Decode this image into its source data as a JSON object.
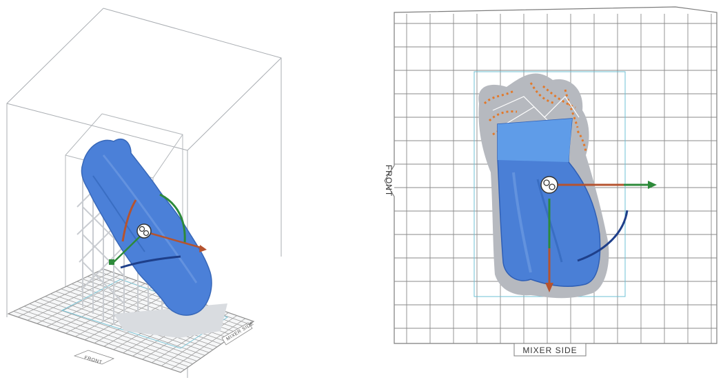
{
  "views": {
    "isometric": {
      "front_label": "FRONT",
      "side_label": "MIXER SIDE"
    },
    "top": {
      "front_label": "FRONT",
      "side_label": "MIXER SIDE"
    }
  },
  "colors": {
    "model": "#4a7fd6",
    "model_dark": "#2f5fb5",
    "support": "#d6d9de",
    "grid": "#8a8a8a",
    "build_box": "#9aa0a6",
    "axis_x": "#b5532f",
    "axis_y": "#2d8a3a",
    "axis_z": "#1e3f8a",
    "outline": "#6cc0d6",
    "support_tip": "#e2792b"
  },
  "icons": [
    "transform-gizmo-icon",
    "rotate-ring-icon",
    "move-arrow-icon"
  ]
}
